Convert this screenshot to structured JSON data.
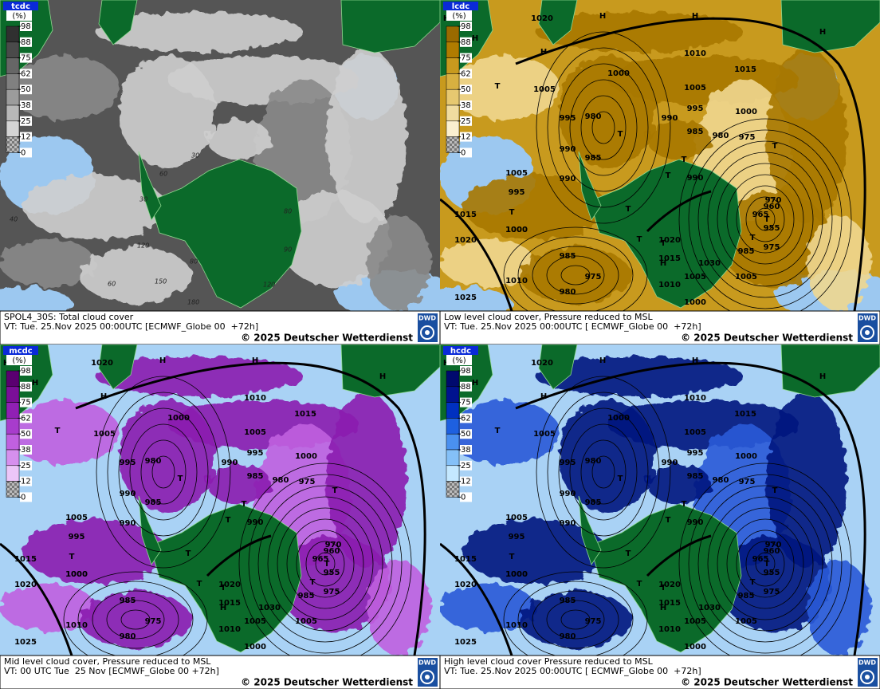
{
  "panels": [
    {
      "field": "tcdc",
      "unit": "(%)",
      "scale": [
        98,
        88,
        75,
        62,
        50,
        38,
        25,
        12,
        0
      ],
      "scale_colors": [
        "#303030",
        "#4a4a4a",
        "#666666",
        "#808080",
        "#9c9c9c",
        "#b8b8b8",
        "#d4d4d4"
      ],
      "caption": "SPOL4_30S: Total cloud cover",
      "valid_time": "VT: Tue. 25.Nov 2025 00:00UTC [ECMWF_Globe 00  +72h]",
      "copyright": "© 2025 Deutscher Wetterdienst",
      "logo": "DWD"
    },
    {
      "field": "lcdc",
      "unit": "(%)",
      "scale": [
        98,
        88,
        75,
        62,
        50,
        38,
        25,
        12,
        0
      ],
      "scale_colors": [
        "#9a6a00",
        "#b07c00",
        "#c89a1e",
        "#d8b040",
        "#e6c870",
        "#f0dca0",
        "#fbf0d0"
      ],
      "caption": "Low level cloud cover, Pressure reduced to MSL",
      "valid_time": "VT: Tue. 25.Nov 2025 00:00UTC [ ECMWF_Globe 00  +72h]",
      "copyright": "© 2025 Deutscher Wetterdienst",
      "logo": "DWD"
    },
    {
      "field": "mcdc",
      "unit": "(%)",
      "scale": [
        98,
        88,
        75,
        62,
        50,
        38,
        25,
        12,
        0
      ],
      "scale_colors": [
        "#5a0070",
        "#7a0f98",
        "#9020b4",
        "#a83ccc",
        "#c060e0",
        "#d690ee",
        "#ecc6f8"
      ],
      "caption": "Mid level cloud cover, Pressure reduced to MSL",
      "valid_time": "VT: 00 UTC Tue  25 Nov [ECMWF_Globe 00 +72h]",
      "copyright": "© 2025 Deutscher Wetterdienst",
      "logo": "DWD"
    },
    {
      "field": "hcdc",
      "unit": "(%)",
      "scale": [
        98,
        88,
        75,
        62,
        50,
        38,
        25,
        12,
        0
      ],
      "scale_colors": [
        "#000a6e",
        "#00138f",
        "#0030c0",
        "#1e60e0",
        "#4a90f0",
        "#84c0f8",
        "#c4e8ff"
      ],
      "caption": "High level cloud cover Pressure reduced to MSL",
      "valid_time": "VT: Tue. 25.Nov 2025 00:00UTC [ ECMWF_Globe 00  +72h]",
      "copyright": "© 2025 Deutscher Wetterdienst",
      "logo": "DWD"
    }
  ],
  "isobar_labels": [
    1020,
    1010,
    1015,
    1000,
    1005,
    1005,
    995,
    980,
    990,
    1000,
    985,
    980,
    975,
    995,
    990,
    985,
    1005,
    995,
    990,
    990,
    970,
    965,
    960,
    955,
    975,
    985,
    1005,
    1015,
    1000,
    1020,
    985,
    975,
    980,
    1010,
    1025,
    1030,
    1020,
    1015,
    1010,
    1000,
    1000,
    1005
  ],
  "pressure_centers": [
    "H",
    "H",
    "H",
    "H",
    "T",
    "T",
    "T",
    "T",
    "T",
    "T",
    "T",
    "H",
    "T",
    "T",
    "H",
    "H",
    "T",
    "T"
  ],
  "grid_labels": [
    "30",
    "60",
    "80",
    "120",
    "40",
    "80",
    "90",
    "120",
    "60",
    "150",
    "180",
    "30"
  ]
}
